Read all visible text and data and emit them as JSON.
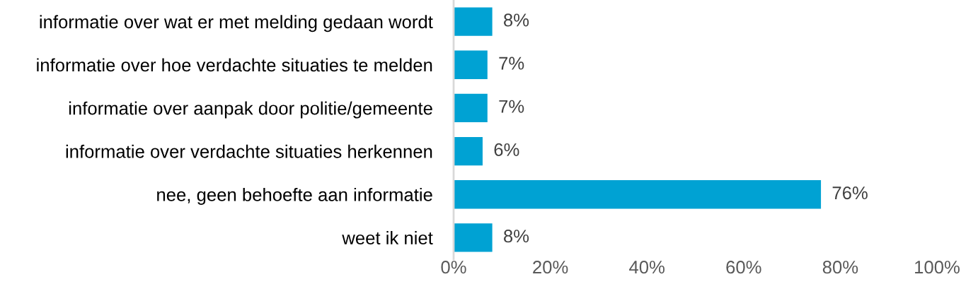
{
  "chart_data": {
    "type": "bar",
    "orientation": "horizontal",
    "categories": [
      "informatie over wat er met melding gedaan wordt",
      "informatie over hoe verdachte situaties te melden",
      "informatie over aanpak door politie/gemeente",
      "informatie over verdachte situaties herkennen",
      "nee, geen behoefte aan informatie",
      "weet ik niet"
    ],
    "values": [
      8,
      7,
      7,
      6,
      76,
      8
    ],
    "value_labels": [
      "8%",
      "7%",
      "7%",
      "6%",
      "76%",
      "8%"
    ],
    "color": "#00a2d3",
    "xlim": [
      0,
      100
    ],
    "xticks": [
      {
        "value": 0,
        "label": "0%"
      },
      {
        "value": 20,
        "label": "20%"
      },
      {
        "value": 40,
        "label": "40%"
      },
      {
        "value": 60,
        "label": "60%"
      },
      {
        "value": 80,
        "label": "80%"
      },
      {
        "value": 100,
        "label": "100%"
      }
    ],
    "grid": false
  }
}
